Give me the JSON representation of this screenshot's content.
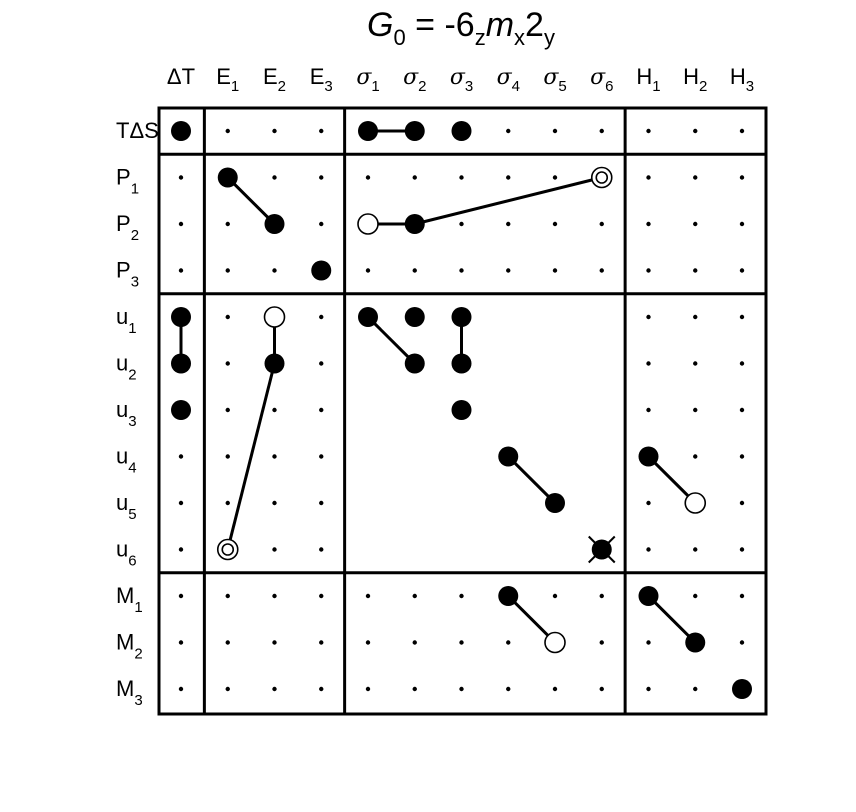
{
  "title": {
    "G": "G",
    "sub0": "0",
    "mid": " = -6",
    "subz": "z",
    "m": "m",
    "subx": "x",
    "two": "2",
    "suby": "y"
  },
  "columns": [
    {
      "id": "dT",
      "base": "ΔT",
      "sub": ""
    },
    {
      "id": "E1",
      "base": "E",
      "sub": "1"
    },
    {
      "id": "E2",
      "base": "E",
      "sub": "2"
    },
    {
      "id": "E3",
      "base": "E",
      "sub": "3"
    },
    {
      "id": "s1",
      "base": "σ",
      "sub": "1",
      "greek": true
    },
    {
      "id": "s2",
      "base": "σ",
      "sub": "2",
      "greek": true
    },
    {
      "id": "s3",
      "base": "σ",
      "sub": "3",
      "greek": true
    },
    {
      "id": "s4",
      "base": "σ",
      "sub": "4",
      "greek": true
    },
    {
      "id": "s5",
      "base": "σ",
      "sub": "5",
      "greek": true
    },
    {
      "id": "s6",
      "base": "σ",
      "sub": "6",
      "greek": true
    },
    {
      "id": "H1",
      "base": "H",
      "sub": "1"
    },
    {
      "id": "H2",
      "base": "H",
      "sub": "2"
    },
    {
      "id": "H3",
      "base": "H",
      "sub": "3"
    }
  ],
  "rows": [
    {
      "id": "TdS",
      "base": "TΔS",
      "sub": ""
    },
    {
      "id": "P1",
      "base": "P",
      "sub": "1"
    },
    {
      "id": "P2",
      "base": "P",
      "sub": "2"
    },
    {
      "id": "P3",
      "base": "P",
      "sub": "3"
    },
    {
      "id": "u1",
      "base": "u",
      "sub": "1"
    },
    {
      "id": "u2",
      "base": "u",
      "sub": "2"
    },
    {
      "id": "u3",
      "base": "u",
      "sub": "3"
    },
    {
      "id": "u4",
      "base": "u",
      "sub": "4"
    },
    {
      "id": "u5",
      "base": "u",
      "sub": "5"
    },
    {
      "id": "u6",
      "base": "u",
      "sub": "6"
    },
    {
      "id": "M1",
      "base": "M",
      "sub": "1"
    },
    {
      "id": "M2",
      "base": "M",
      "sub": "2"
    },
    {
      "id": "M3",
      "base": "M",
      "sub": "3"
    }
  ],
  "row_groups": [
    [
      0,
      0
    ],
    [
      1,
      3
    ],
    [
      4,
      9
    ],
    [
      10,
      12
    ]
  ],
  "col_groups": [
    [
      0,
      0
    ],
    [
      1,
      3
    ],
    [
      4,
      9
    ],
    [
      10,
      12
    ]
  ],
  "blank_blocks": [
    [
      2,
      2
    ]
  ],
  "markers": [
    {
      "row": 0,
      "col": 0,
      "type": "filled"
    },
    {
      "row": 0,
      "col": 4,
      "type": "filled"
    },
    {
      "row": 0,
      "col": 5,
      "type": "filled"
    },
    {
      "row": 0,
      "col": 6,
      "type": "filled"
    },
    {
      "row": 1,
      "col": 1,
      "type": "filled"
    },
    {
      "row": 1,
      "col": 9,
      "type": "double"
    },
    {
      "row": 2,
      "col": 2,
      "type": "filled"
    },
    {
      "row": 2,
      "col": 4,
      "type": "open"
    },
    {
      "row": 2,
      "col": 5,
      "type": "filled"
    },
    {
      "row": 3,
      "col": 3,
      "type": "filled"
    },
    {
      "row": 4,
      "col": 0,
      "type": "filled"
    },
    {
      "row": 4,
      "col": 2,
      "type": "open"
    },
    {
      "row": 4,
      "col": 4,
      "type": "filled"
    },
    {
      "row": 4,
      "col": 5,
      "type": "filled"
    },
    {
      "row": 4,
      "col": 6,
      "type": "filled"
    },
    {
      "row": 5,
      "col": 0,
      "type": "filled"
    },
    {
      "row": 5,
      "col": 2,
      "type": "filled"
    },
    {
      "row": 5,
      "col": 5,
      "type": "filled"
    },
    {
      "row": 5,
      "col": 6,
      "type": "filled"
    },
    {
      "row": 6,
      "col": 0,
      "type": "filled"
    },
    {
      "row": 6,
      "col": 6,
      "type": "filled"
    },
    {
      "row": 7,
      "col": 7,
      "type": "filled"
    },
    {
      "row": 7,
      "col": 10,
      "type": "filled"
    },
    {
      "row": 8,
      "col": 8,
      "type": "filled"
    },
    {
      "row": 8,
      "col": 11,
      "type": "open"
    },
    {
      "row": 9,
      "col": 1,
      "type": "double"
    },
    {
      "row": 9,
      "col": 9,
      "type": "crossed"
    },
    {
      "row": 10,
      "col": 7,
      "type": "filled"
    },
    {
      "row": 10,
      "col": 10,
      "type": "filled"
    },
    {
      "row": 11,
      "col": 8,
      "type": "open"
    },
    {
      "row": 11,
      "col": 11,
      "type": "filled"
    },
    {
      "row": 12,
      "col": 12,
      "type": "filled"
    }
  ],
  "connections": [
    {
      "from": [
        0,
        4
      ],
      "to": [
        0,
        5
      ]
    },
    {
      "from": [
        1,
        1
      ],
      "to": [
        2,
        2
      ]
    },
    {
      "from": [
        2,
        4
      ],
      "to": [
        2,
        5
      ]
    },
    {
      "from": [
        2,
        5
      ],
      "to": [
        1,
        9
      ]
    },
    {
      "from": [
        4,
        0
      ],
      "to": [
        5,
        0
      ]
    },
    {
      "from": [
        4,
        2
      ],
      "to": [
        5,
        2
      ]
    },
    {
      "from": [
        5,
        2
      ],
      "to": [
        9,
        1
      ]
    },
    {
      "from": [
        4,
        4
      ],
      "to": [
        5,
        5
      ]
    },
    {
      "from": [
        4,
        6
      ],
      "to": [
        5,
        6
      ]
    },
    {
      "from": [
        7,
        7
      ],
      "to": [
        8,
        8
      ]
    },
    {
      "from": [
        7,
        10
      ],
      "to": [
        8,
        11
      ]
    },
    {
      "from": [
        10,
        7
      ],
      "to": [
        11,
        8
      ]
    },
    {
      "from": [
        10,
        10
      ],
      "to": [
        11,
        11
      ]
    }
  ]
}
